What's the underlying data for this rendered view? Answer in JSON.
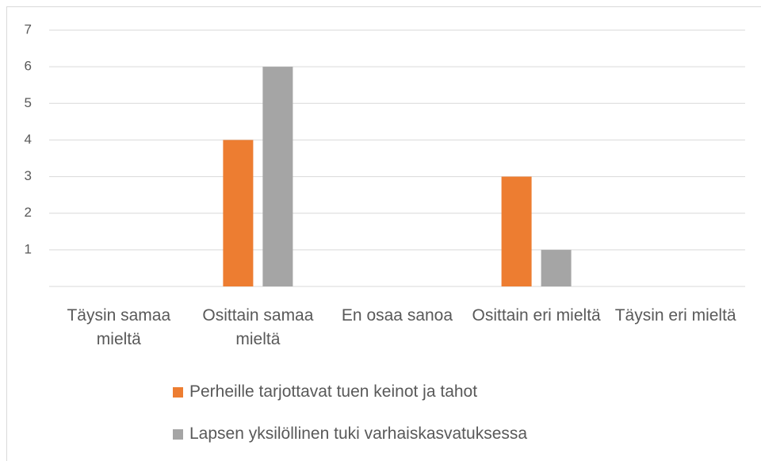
{
  "chart_data": {
    "type": "bar",
    "categories": [
      "Täysin samaa mieltä",
      "Osittain samaa mieltä",
      "En osaa sanoa",
      "Osittain eri mieltä",
      "Täysin eri mieltä"
    ],
    "series": [
      {
        "name": "Perheille tarjottavat tuen keinot ja tahot",
        "color": "#ed7d31",
        "values": [
          0,
          4,
          0,
          3,
          0
        ]
      },
      {
        "name": "Lapsen yksilöllinen tuki varhaiskasvatuksessa",
        "color": "#a5a5a5",
        "values": [
          0,
          6,
          0,
          1,
          0
        ]
      }
    ],
    "ylim": [
      0,
      7
    ],
    "yticks": [
      1,
      2,
      3,
      4,
      5,
      6,
      7
    ],
    "grid": true,
    "legend": "bottom"
  }
}
